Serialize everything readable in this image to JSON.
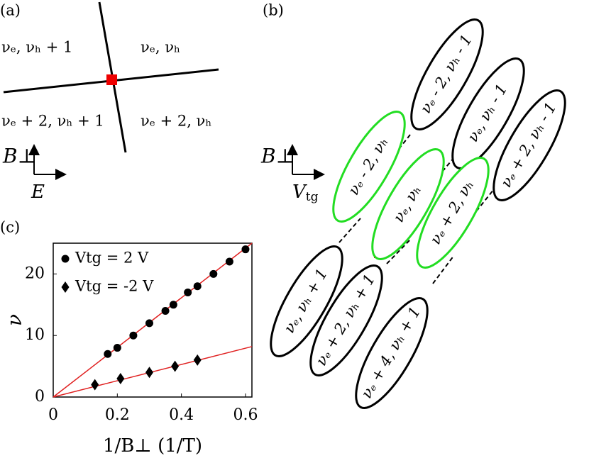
{
  "panel_a": {
    "tag": "(a)",
    "regions": [
      "νₑ, νₕ + 1",
      "νₑ, νₕ",
      "νₑ + 2, νₕ + 1",
      "νₑ + 2, νₕ"
    ],
    "axis_up": "B⊥",
    "axis_right": "E"
  },
  "panel_b": {
    "tag": "(b)",
    "axis_up": "B⊥",
    "axis_right_main": "V",
    "axis_right_sub": "tg",
    "ellipses": [
      {
        "label": "νₑ - 2, νₕ - 1",
        "color": "#000000"
      },
      {
        "label": "νₑ, νₕ - 1",
        "color": "#000000"
      },
      {
        "label": "νₑ + 2, νₕ - 1",
        "color": "#000000"
      },
      {
        "label": "νₑ - 2, νₕ",
        "color": "#22dd22"
      },
      {
        "label": "νₑ, νₕ",
        "color": "#22dd22"
      },
      {
        "label": "νₑ + 2, νₕ",
        "color": "#22dd22"
      },
      {
        "label": "νₑ, νₕ + 1",
        "color": "#000000"
      },
      {
        "label": "νₑ + 2, νₕ + 1",
        "color": "#000000"
      },
      {
        "label": "νₑ + 4, νₕ + 1",
        "color": "#000000"
      }
    ]
  },
  "chart_data": {
    "type": "scatter",
    "tag": "(c)",
    "x_label": "1/B⊥ (1/T)",
    "y_label": "ν",
    "xlim": [
      0,
      0.62
    ],
    "ylim": [
      0,
      25
    ],
    "xticks": [
      0,
      0.2,
      0.4,
      0.6
    ],
    "yticks": [
      0,
      10,
      20
    ],
    "series": [
      {
        "name": "Vtg = 2 V",
        "marker": "circle",
        "color": "#000000",
        "x": [
          0.17,
          0.2,
          0.25,
          0.3,
          0.35,
          0.375,
          0.42,
          0.45,
          0.5,
          0.55,
          0.6
        ],
        "values": [
          7,
          8,
          10,
          12,
          14,
          15,
          17,
          18,
          20,
          22,
          24
        ]
      },
      {
        "name": "Vtg = -2 V",
        "marker": "diamond",
        "color": "#000000",
        "x": [
          0.13,
          0.21,
          0.3,
          0.38,
          0.45
        ],
        "values": [
          2,
          3,
          4,
          5,
          6
        ]
      }
    ],
    "fit_lines": [
      {
        "color": "#e02020",
        "x": [
          0,
          0.62
        ],
        "values": [
          0,
          25
        ]
      },
      {
        "color": "#e02020",
        "x": [
          0,
          0.62
        ],
        "values": [
          0,
          8.2
        ]
      }
    ]
  }
}
